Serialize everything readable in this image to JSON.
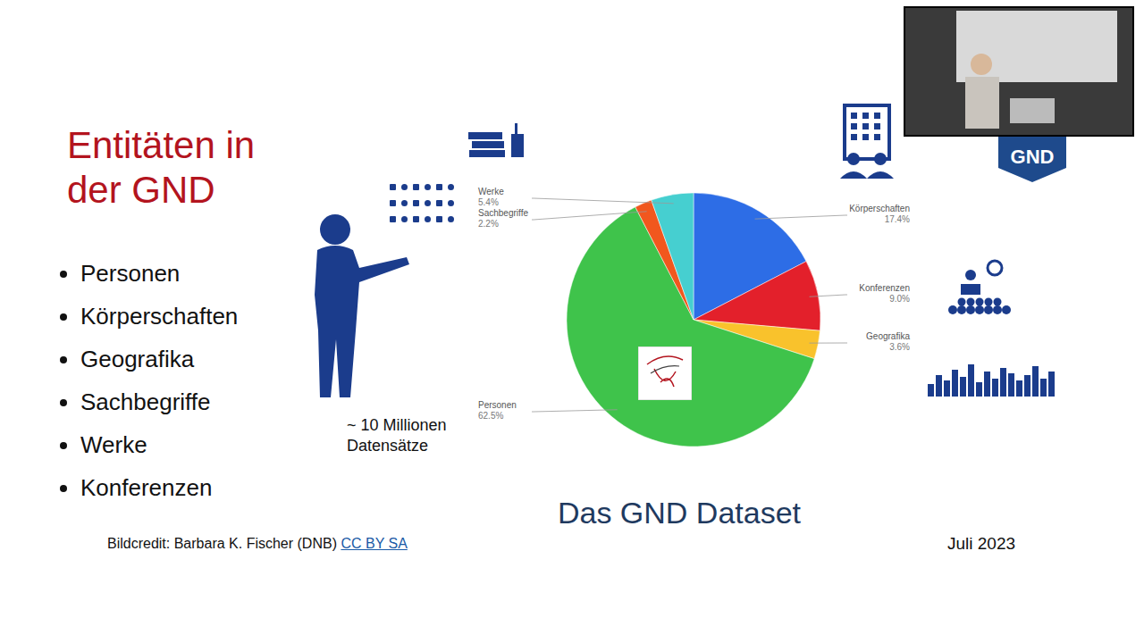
{
  "title": "Entitäten in der GND",
  "bullets": [
    "Personen",
    "Körperschaften",
    "Geografika",
    "Sachbegriffe",
    "Werke",
    "Konferenzen"
  ],
  "note": "~ 10 Millionen Datensätze",
  "credit": {
    "text": "Bildcredit: Barbara K. Fischer (DNB)",
    "license": "CC BY SA"
  },
  "caption": "Das GND Dataset",
  "date": "Juli 2023",
  "logo": "GND",
  "chart_data": {
    "type": "pie",
    "categories": [
      "Körperschaften",
      "Konferenzen",
      "Geografika",
      "Personen",
      "Sachbegriffe",
      "Werke"
    ],
    "values": [
      17.4,
      9.0,
      3.6,
      62.5,
      2.2,
      5.4
    ],
    "value_labels": [
      "17.4%",
      "9.0%",
      "3.6%",
      "62.5%",
      "2.2%",
      "5.4%"
    ],
    "colors": [
      "#2d6de6",
      "#e3202b",
      "#f9c22c",
      "#3fc34b",
      "#f1571e",
      "#46cfd0"
    ],
    "data_labels": true
  }
}
